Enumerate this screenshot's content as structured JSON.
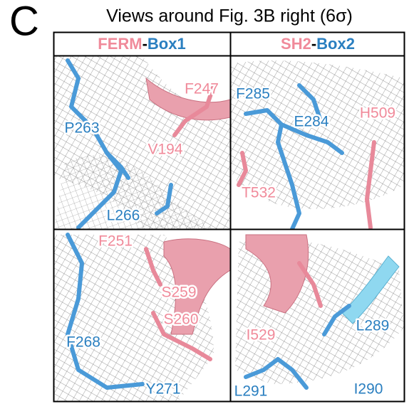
{
  "panel_letter": "C",
  "title": "Views around Fig. 3B right (6σ)",
  "headers": [
    {
      "part1": "FERM",
      "separator": "-",
      "part2": "Box1"
    },
    {
      "part1": "SH2",
      "separator": "-",
      "part2": "Box2"
    }
  ],
  "panels": [
    {
      "labels": [
        "F247",
        "P263",
        "V194",
        "L266"
      ]
    },
    {
      "labels": [
        "F285",
        "E284",
        "H509",
        "T532"
      ]
    },
    {
      "labels": [
        "F251",
        "S259",
        "S260",
        "F268",
        "Y271"
      ]
    },
    {
      "labels": [
        "L289",
        "I529",
        "I290",
        "L291"
      ]
    }
  ]
}
